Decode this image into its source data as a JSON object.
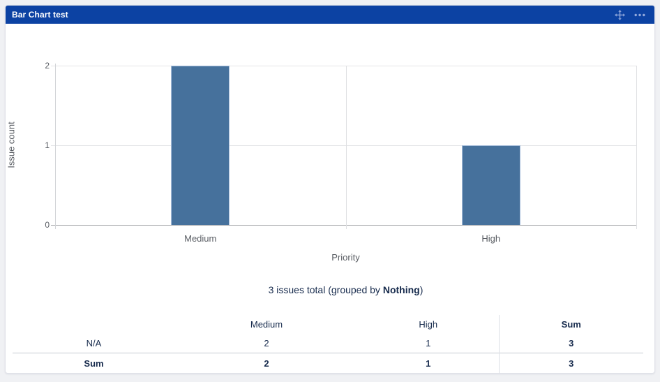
{
  "panel": {
    "title": "Bar Chart test",
    "header_color": "#0c42a3",
    "icons": {
      "move": "move-icon",
      "more": "ellipsis-icon"
    },
    "icon_color": "#93a9dc"
  },
  "chart_data": {
    "type": "bar",
    "categories": [
      "Medium",
      "High"
    ],
    "values": [
      2,
      1
    ],
    "title": "",
    "xlabel": "Priority",
    "ylabel": "Issue count",
    "yticks": [
      0,
      1,
      2
    ],
    "ylim": [
      0,
      2
    ],
    "bar_color": "#46719c",
    "grid": true,
    "legend": false
  },
  "summary": {
    "prefix": "3 issues total (grouped by ",
    "group_by": "Nothing",
    "suffix": ")"
  },
  "table": {
    "headers": [
      "",
      "Medium",
      "High",
      "Sum"
    ],
    "rows": [
      {
        "label": "N/A",
        "cells": [
          "2",
          "1",
          "3"
        ],
        "is_sum_row": false
      },
      {
        "label": "Sum",
        "cells": [
          "2",
          "1",
          "3"
        ],
        "is_sum_row": true
      }
    ]
  }
}
